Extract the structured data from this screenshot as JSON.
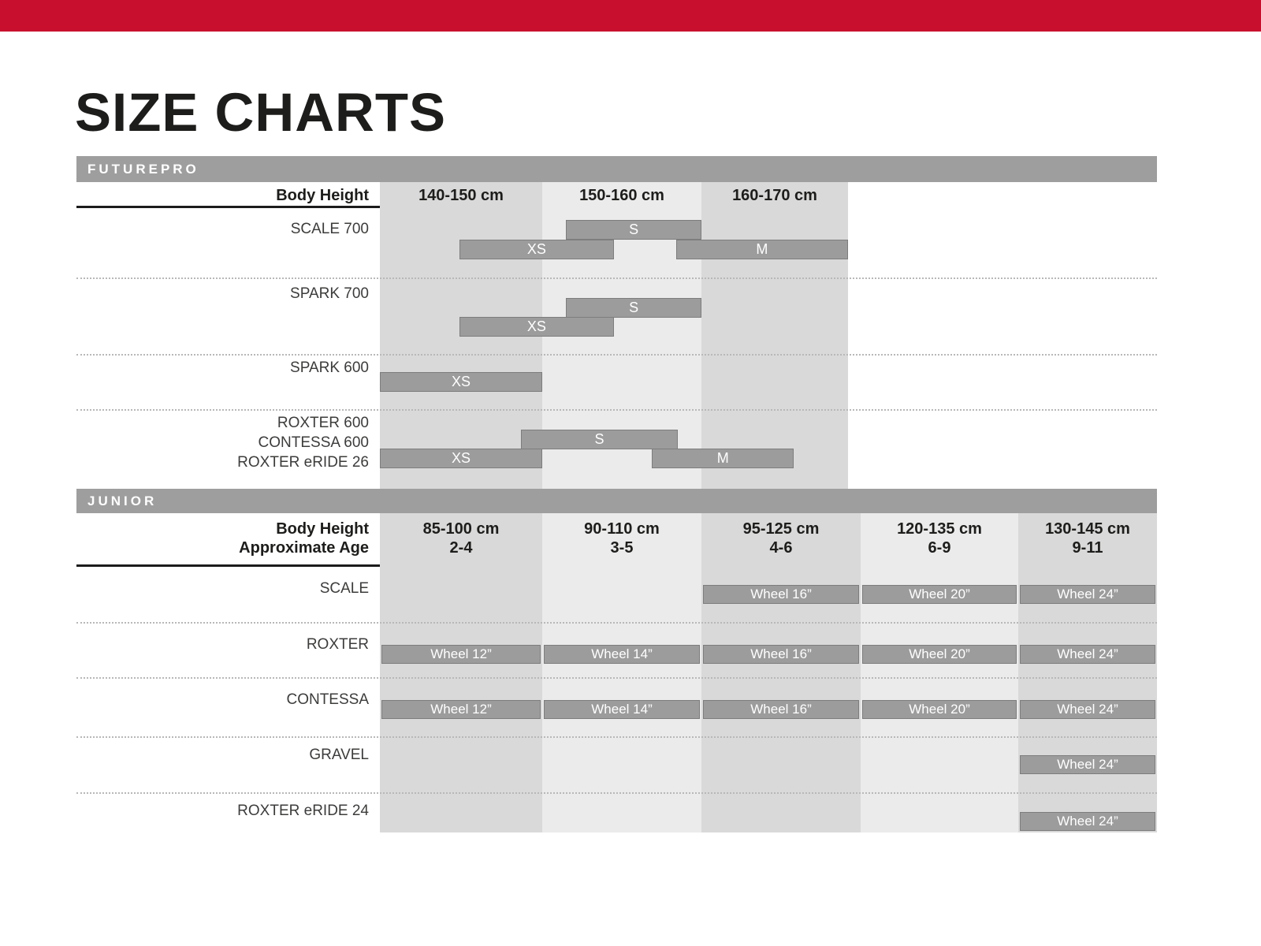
{
  "title": "SIZE CHARTS",
  "colors": {
    "top_bar": "#c8102e",
    "section_bar": "#9e9e9e",
    "band_dark": "#d9d9d9",
    "band_light": "#ebebeb",
    "size_bar_fill": "#9c9c9c",
    "size_bar_border": "#7d7d7d",
    "size_bar_text": "#ffffff",
    "heading_text": "#1d1d1b",
    "row_label_text": "#3c3c3b"
  },
  "futurepro": {
    "section_label": "FUTUREPRO",
    "header_label": "Body Height"
  },
  "junior": {
    "section_label": "JUNIOR",
    "header_line1": "Body Height",
    "header_line2": "Approximate Age"
  },
  "chart_data": [
    {
      "type": "bar",
      "subtype": "horizontal-range-bars",
      "title": "FUTUREPRO",
      "xlabel": "Body Height",
      "x_unit": "cm",
      "xlim": [
        140,
        170
      ],
      "grid": "shaded-column-bands",
      "columns": [
        {
          "label": "140-150 cm",
          "range_cm": [
            140,
            150
          ]
        },
        {
          "label": "150-160 cm",
          "range_cm": [
            150,
            160
          ]
        },
        {
          "label": "160-170 cm",
          "range_cm": [
            160,
            170
          ]
        }
      ],
      "rows": [
        {
          "models": [
            "SCALE 700"
          ],
          "bars": [
            {
              "size": "S",
              "cm": [
                151.5,
                160.0
              ],
              "lane": 0
            },
            {
              "size": "XS",
              "cm": [
                144.9,
                154.5
              ],
              "lane": 1
            },
            {
              "size": "M",
              "cm": [
                158.4,
                170.0
              ],
              "lane": 1
            }
          ]
        },
        {
          "models": [
            "SPARK 700"
          ],
          "bars": [
            {
              "size": "S",
              "cm": [
                151.5,
                160.0
              ],
              "lane": 0
            },
            {
              "size": "XS",
              "cm": [
                144.9,
                154.5
              ],
              "lane": 1
            }
          ]
        },
        {
          "models": [
            "SPARK 600"
          ],
          "bars": [
            {
              "size": "XS",
              "cm": [
                140.0,
                150.0
              ],
              "lane": 1
            }
          ]
        },
        {
          "models": [
            "ROXTER 600",
            "CONTESSA 600",
            "ROXTER eRIDE 26"
          ],
          "bars": [
            {
              "size": "S",
              "cm": [
                148.7,
                158.5
              ],
              "lane": 0
            },
            {
              "size": "XS",
              "cm": [
                140.0,
                150.0
              ],
              "lane": 1
            },
            {
              "size": "M",
              "cm": [
                156.9,
                166.3
              ],
              "lane": 1
            }
          ]
        }
      ]
    },
    {
      "type": "table",
      "title": "JUNIOR",
      "row_header_labels": [
        "Body Height",
        "Approximate Age"
      ],
      "columns": [
        {
          "body_height": "85-100 cm",
          "age": "2-4"
        },
        {
          "body_height": "90-110 cm",
          "age": "3-5"
        },
        {
          "body_height": "95-125 cm",
          "age": "4-6"
        },
        {
          "body_height": "120-135 cm",
          "age": "6-9"
        },
        {
          "body_height": "130-145 cm",
          "age": "9-11"
        }
      ],
      "rows": [
        {
          "models": [
            "SCALE"
          ],
          "cells": [
            null,
            null,
            "Wheel 16”",
            "Wheel 20”",
            "Wheel 24”"
          ]
        },
        {
          "models": [
            "ROXTER"
          ],
          "cells": [
            "Wheel 12”",
            "Wheel 14”",
            "Wheel 16”",
            "Wheel 20”",
            "Wheel 24”"
          ]
        },
        {
          "models": [
            "CONTESSA"
          ],
          "cells": [
            "Wheel 12”",
            "Wheel 14”",
            "Wheel 16”",
            "Wheel 20”",
            "Wheel 24”"
          ]
        },
        {
          "models": [
            "GRAVEL"
          ],
          "cells": [
            null,
            null,
            null,
            null,
            "Wheel 24”"
          ]
        },
        {
          "models": [
            "ROXTER eRIDE 24"
          ],
          "cells": [
            null,
            null,
            null,
            null,
            "Wheel 24”"
          ]
        }
      ]
    }
  ]
}
